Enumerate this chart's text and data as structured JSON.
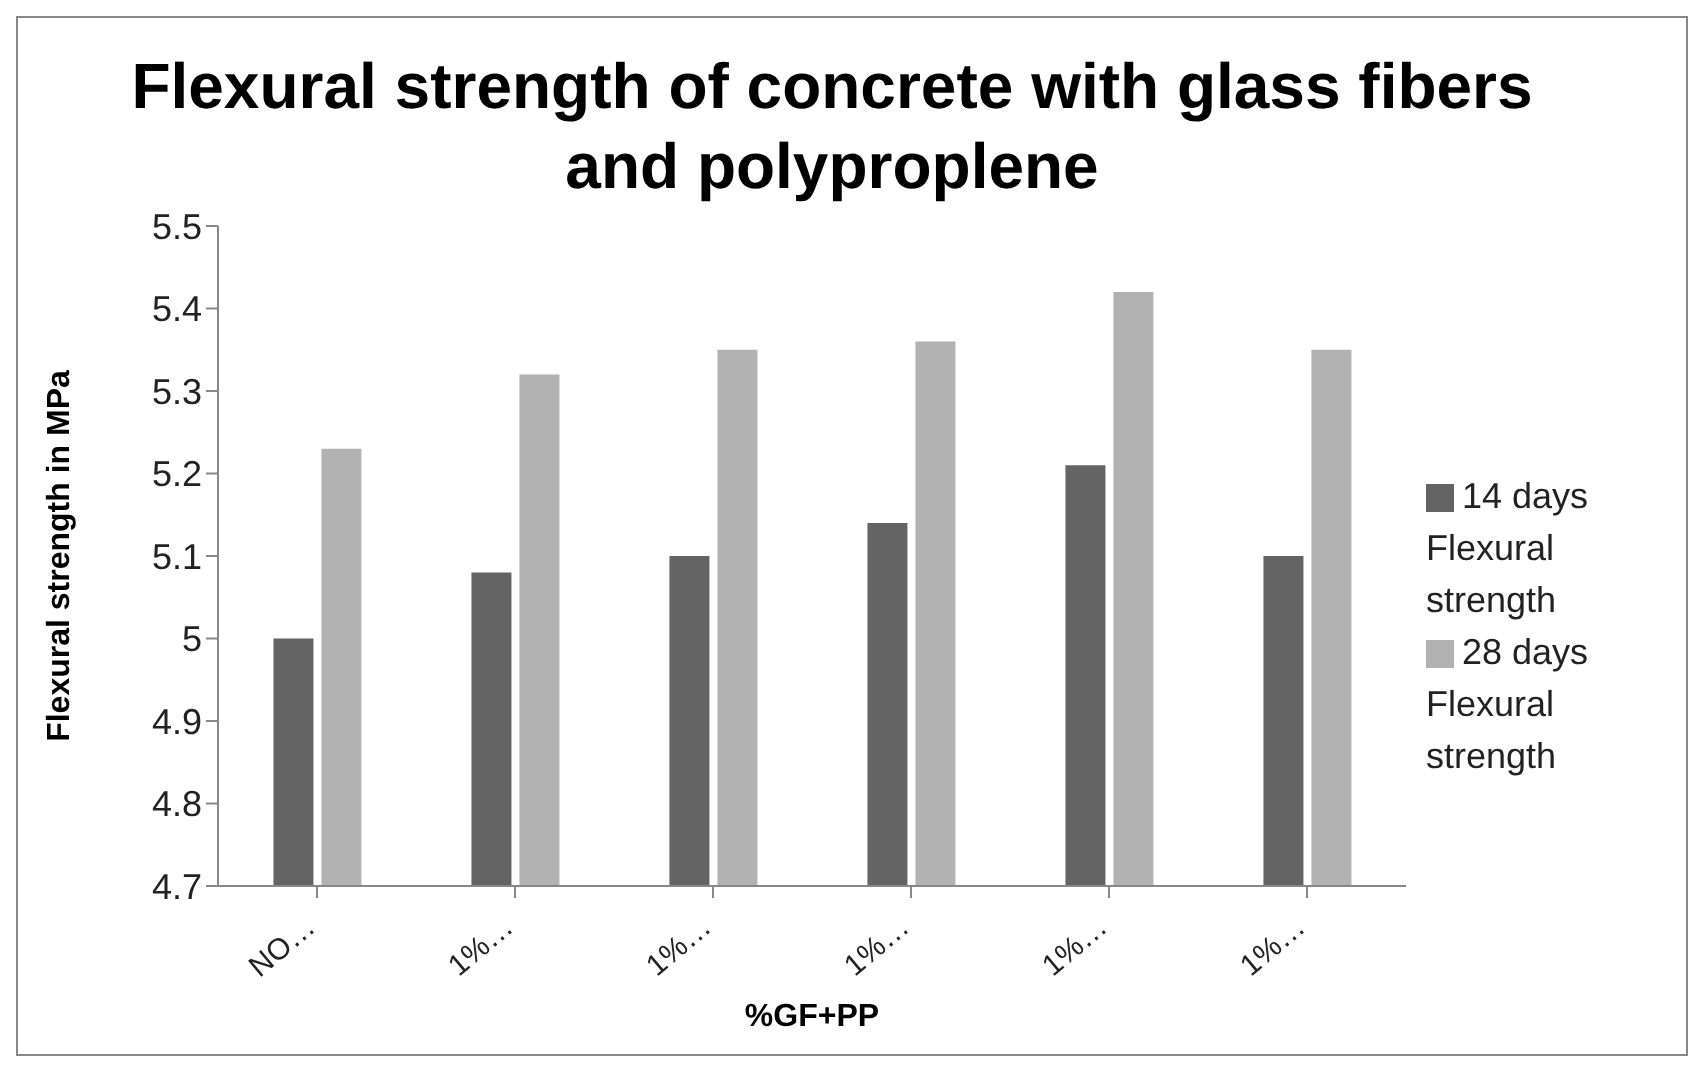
{
  "chart_data": {
    "type": "bar",
    "title": "Flexural strength of concrete with glass fibers and polyproplene",
    "xlabel": "%GF+PP",
    "ylabel": "Flexural strength in MPa",
    "categories": [
      "NO…",
      "1%…",
      "1%…",
      "1%…",
      "1%…",
      "1%…"
    ],
    "series": [
      {
        "name": "14 days Flexural strength",
        "color": "#646464",
        "values": [
          5.0,
          5.08,
          5.1,
          5.14,
          5.21,
          5.1
        ]
      },
      {
        "name": "28 days Flexural strength",
        "color": "#b2b2b2",
        "values": [
          5.23,
          5.32,
          5.35,
          5.36,
          5.42,
          5.35
        ]
      }
    ],
    "ylim": [
      4.7,
      5.5
    ],
    "yticks": [
      4.7,
      4.8,
      4.9,
      5,
      5.1,
      5.2,
      5.3,
      5.4,
      5.5
    ],
    "grid": false,
    "legend": "right"
  }
}
